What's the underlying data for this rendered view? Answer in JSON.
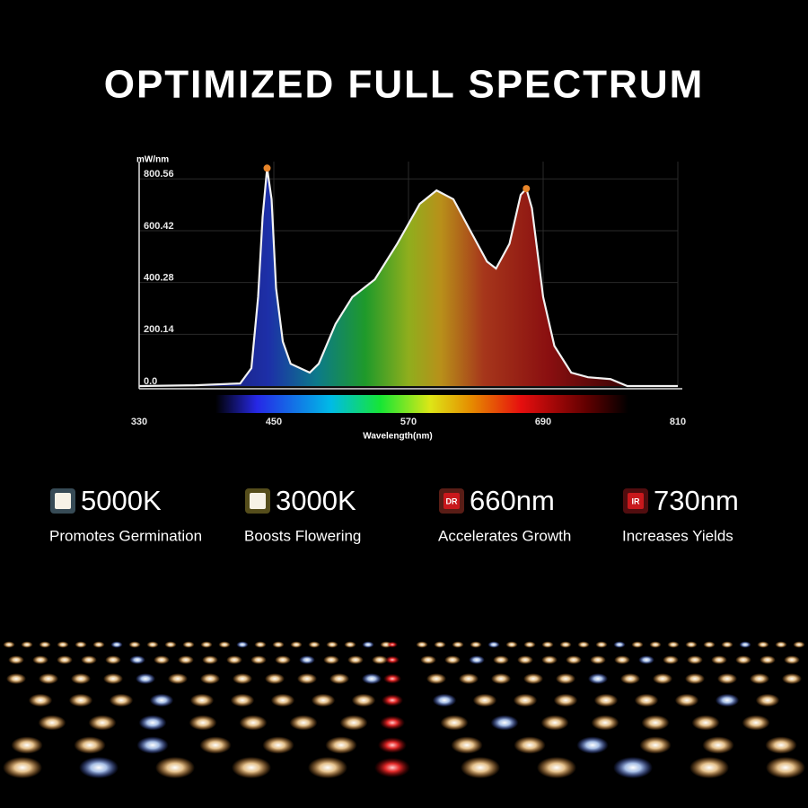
{
  "title": "OPTIMIZED FULL SPECTRUM",
  "chart_data": {
    "type": "area",
    "y_label": "mW/nm",
    "x_label": "Wavelength(nm)",
    "x": [
      330,
      380,
      420,
      430,
      436,
      440,
      444,
      448,
      452,
      458,
      465,
      482,
      490,
      505,
      520,
      540,
      560,
      580,
      595,
      610,
      625,
      640,
      648,
      660,
      670,
      675,
      680,
      690,
      700,
      715,
      730,
      750,
      765,
      810
    ],
    "values": [
      0,
      3,
      10,
      69,
      344,
      653,
      842,
      722,
      378,
      172,
      86,
      52,
      86,
      240,
      344,
      412,
      550,
      704,
      756,
      722,
      601,
      481,
      454,
      550,
      739,
      763,
      687,
      344,
      155,
      52,
      34,
      27,
      0,
      0
    ],
    "color": "#f2f2f2",
    "markers": [
      {
        "x": 444,
        "y": 842
      },
      {
        "x": 675,
        "y": 763
      }
    ],
    "marker_color": "#e8852a",
    "xlim": [
      330,
      810
    ],
    "xticks": [
      330,
      450,
      570,
      690,
      810
    ],
    "ylim": [
      0,
      850
    ],
    "yticks": [
      {
        "value": 0,
        "label": "0.0"
      },
      200.14,
      400.28,
      600.42,
      800.56
    ],
    "grid": true
  },
  "features": [
    {
      "value": "5000K",
      "caption": "Promotes Germination",
      "color": "#9fd6f7"
    },
    {
      "value": "3000K",
      "caption": "Boosts Flowering",
      "color": "#f4dc4e"
    },
    {
      "badge": "DR",
      "value": "660nm",
      "caption": "Accelerates Growth",
      "color": "#ff5440"
    },
    {
      "badge": "IR",
      "value": "730nm",
      "caption": "Increases Yields",
      "color": "#e8262c"
    }
  ]
}
